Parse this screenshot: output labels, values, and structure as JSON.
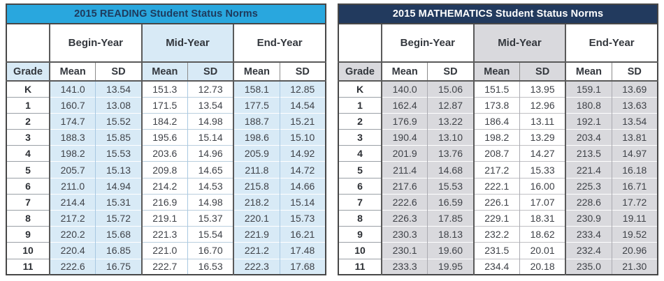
{
  "page": {
    "background": "#ffffff"
  },
  "tables": [
    {
      "id": "reading",
      "title": "2015 READING Student Status Norms",
      "colors": {
        "title_bg": "#29A7DE",
        "title_text": "#1E3A5C",
        "tint": "#D8EAF6",
        "border_dark": "#474747"
      },
      "grade_header": "Grade",
      "col_groups": [
        {
          "label": "Begin-Year",
          "tinted": false
        },
        {
          "label": "Mid-Year",
          "tinted": true
        },
        {
          "label": "End-Year",
          "tinted": false
        }
      ],
      "sub_headers": [
        "Mean",
        "SD",
        "Mean",
        "SD",
        "Mean",
        "SD"
      ],
      "rows": [
        {
          "grade": "K",
          "values": [
            "141.0",
            "13.54",
            "151.3",
            "12.73",
            "158.1",
            "12.85"
          ]
        },
        {
          "grade": "1",
          "values": [
            "160.7",
            "13.08",
            "171.5",
            "13.54",
            "177.5",
            "14.54"
          ]
        },
        {
          "grade": "2",
          "values": [
            "174.7",
            "15.52",
            "184.2",
            "14.98",
            "188.7",
            "15.21"
          ]
        },
        {
          "grade": "3",
          "values": [
            "188.3",
            "15.85",
            "195.6",
            "15.14",
            "198.6",
            "15.10"
          ]
        },
        {
          "grade": "4",
          "values": [
            "198.2",
            "15.53",
            "203.6",
            "14.96",
            "205.9",
            "14.92"
          ]
        },
        {
          "grade": "5",
          "values": [
            "205.7",
            "15.13",
            "209.8",
            "14.65",
            "211.8",
            "14.72"
          ]
        },
        {
          "grade": "6",
          "values": [
            "211.0",
            "14.94",
            "214.2",
            "14.53",
            "215.8",
            "14.66"
          ]
        },
        {
          "grade": "7",
          "values": [
            "214.4",
            "15.31",
            "216.9",
            "14.98",
            "218.2",
            "15.14"
          ]
        },
        {
          "grade": "8",
          "values": [
            "217.2",
            "15.72",
            "219.1",
            "15.37",
            "220.1",
            "15.73"
          ]
        },
        {
          "grade": "9",
          "values": [
            "220.2",
            "15.68",
            "221.3",
            "15.54",
            "221.9",
            "16.21"
          ]
        },
        {
          "grade": "10",
          "values": [
            "220.4",
            "16.85",
            "221.0",
            "16.70",
            "221.2",
            "17.48"
          ]
        },
        {
          "grade": "11",
          "values": [
            "222.6",
            "16.75",
            "222.7",
            "16.53",
            "222.3",
            "17.68"
          ]
        }
      ]
    },
    {
      "id": "mathematics",
      "title": "2015 MATHEMATICS Student Status Norms",
      "colors": {
        "title_bg": "#223A5E",
        "title_text": "#FFFFFF",
        "tint": "#D9D9DD",
        "border_dark": "#474747"
      },
      "grade_header": "Grade",
      "col_groups": [
        {
          "label": "Begin-Year",
          "tinted": false
        },
        {
          "label": "Mid-Year",
          "tinted": true
        },
        {
          "label": "End-Year",
          "tinted": false
        }
      ],
      "sub_headers": [
        "Mean",
        "SD",
        "Mean",
        "SD",
        "Mean",
        "SD"
      ],
      "rows": [
        {
          "grade": "K",
          "values": [
            "140.0",
            "15.06",
            "151.5",
            "13.95",
            "159.1",
            "13.69"
          ]
        },
        {
          "grade": "1",
          "values": [
            "162.4",
            "12.87",
            "173.8",
            "12.96",
            "180.8",
            "13.63"
          ]
        },
        {
          "grade": "2",
          "values": [
            "176.9",
            "13.22",
            "186.4",
            "13.11",
            "192.1",
            "13.54"
          ]
        },
        {
          "grade": "3",
          "values": [
            "190.4",
            "13.10",
            "198.2",
            "13.29",
            "203.4",
            "13.81"
          ]
        },
        {
          "grade": "4",
          "values": [
            "201.9",
            "13.76",
            "208.7",
            "14.27",
            "213.5",
            "14.97"
          ]
        },
        {
          "grade": "5",
          "values": [
            "211.4",
            "14.68",
            "217.2",
            "15.33",
            "221.4",
            "16.18"
          ]
        },
        {
          "grade": "6",
          "values": [
            "217.6",
            "15.53",
            "222.1",
            "16.00",
            "225.3",
            "16.71"
          ]
        },
        {
          "grade": "7",
          "values": [
            "222.6",
            "16.59",
            "226.1",
            "17.07",
            "228.6",
            "17.72"
          ]
        },
        {
          "grade": "8",
          "values": [
            "226.3",
            "17.85",
            "229.1",
            "18.31",
            "230.9",
            "19.11"
          ]
        },
        {
          "grade": "9",
          "values": [
            "230.3",
            "18.13",
            "232.2",
            "18.62",
            "233.4",
            "19.52"
          ]
        },
        {
          "grade": "10",
          "values": [
            "230.1",
            "19.60",
            "231.5",
            "20.01",
            "232.4",
            "20.96"
          ]
        },
        {
          "grade": "11",
          "values": [
            "233.3",
            "19.95",
            "234.4",
            "20.18",
            "235.0",
            "21.30"
          ]
        }
      ]
    }
  ]
}
